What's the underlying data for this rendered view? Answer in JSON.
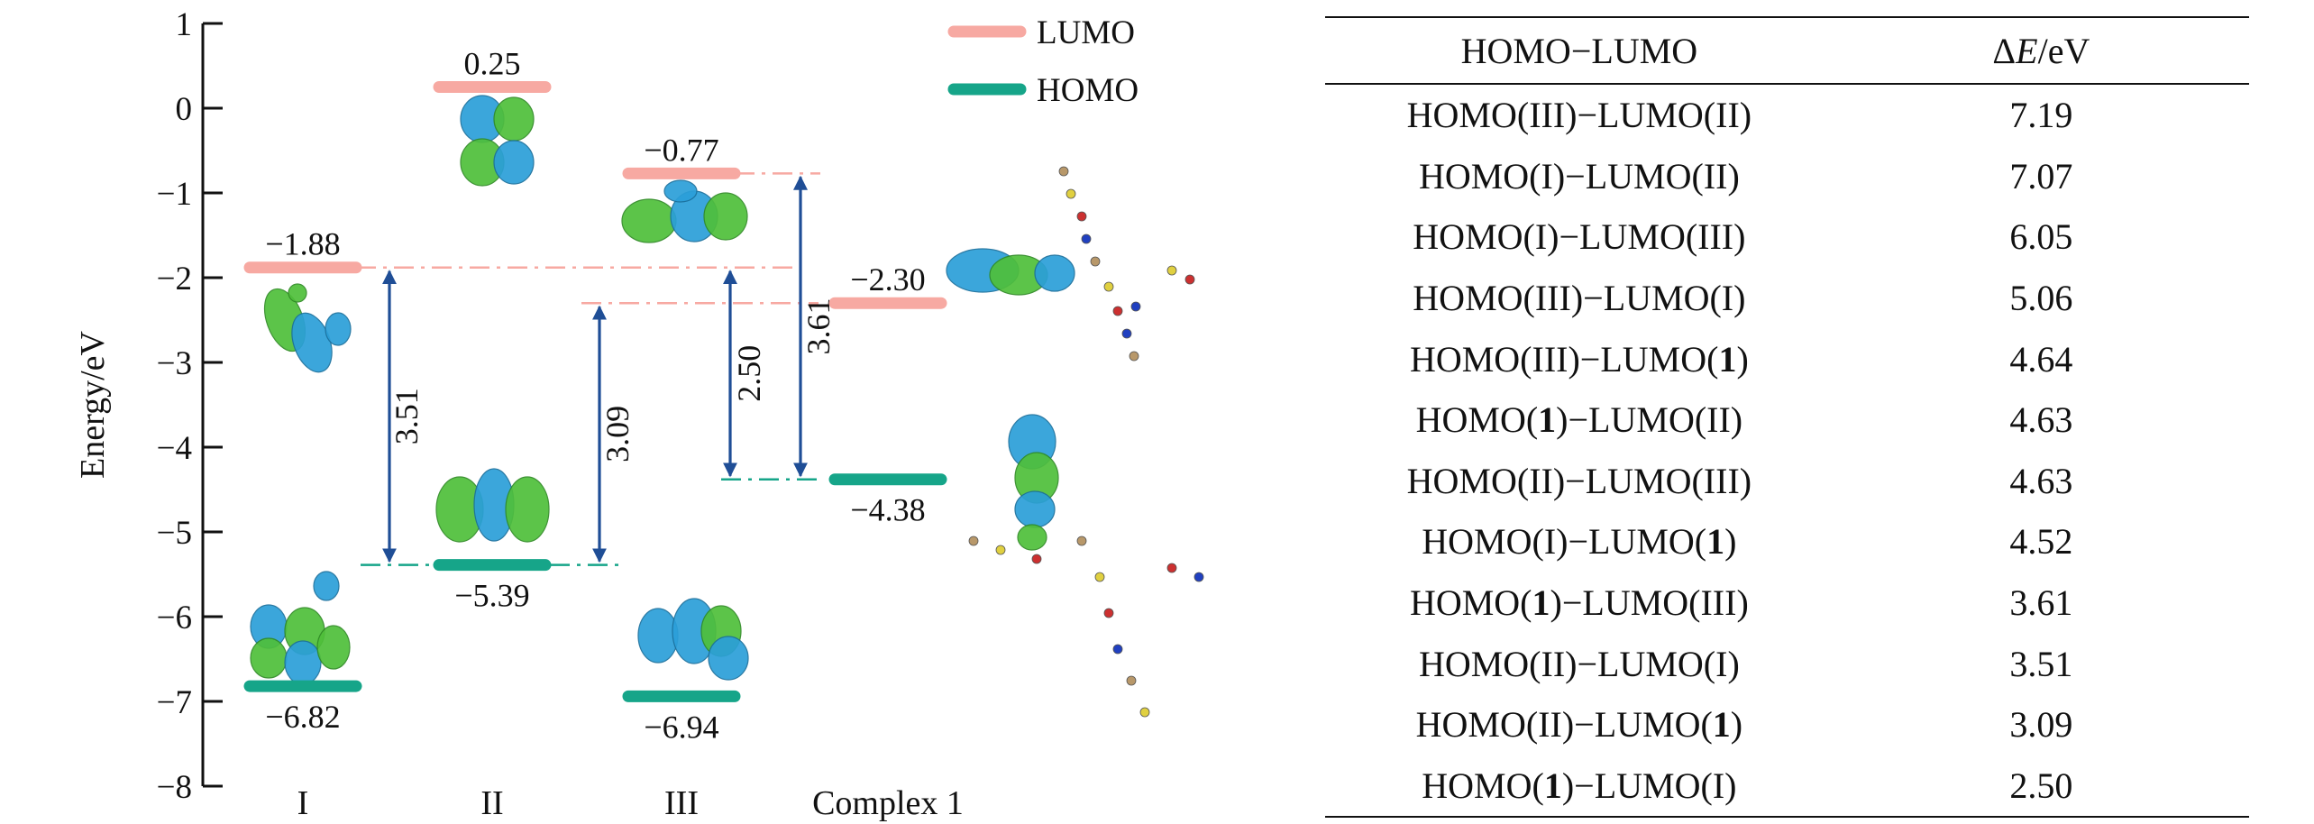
{
  "chart_data": {
    "type": "energy-level-diagram",
    "ylabel": "Energy/eV",
    "ylim": [
      -8,
      1
    ],
    "yticks": [
      1,
      0,
      -1,
      -2,
      -3,
      -4,
      -5,
      -6,
      -7,
      -8
    ],
    "categories": [
      "I",
      "II",
      "III",
      "Complex 1"
    ],
    "legend": {
      "placement": "top-right",
      "entries": [
        {
          "label": "LUMO",
          "color": "#f7a9a2"
        },
        {
          "label": "HOMO",
          "color": "#16a589"
        }
      ]
    },
    "levels": [
      {
        "category": "I",
        "lumo": -1.88,
        "homo": -6.82,
        "lumo_label": "−1.88",
        "homo_label": "−6.82"
      },
      {
        "category": "II",
        "lumo": 0.25,
        "homo": -5.39,
        "lumo_label": "0.25",
        "homo_label": "−5.39"
      },
      {
        "category": "III",
        "lumo": -0.77,
        "homo": -6.94,
        "lumo_label": "−0.77",
        "homo_label": "−6.94"
      },
      {
        "category": "Complex 1",
        "lumo": -2.3,
        "homo": -4.38,
        "lumo_label": "−2.30",
        "homo_label": "−4.38"
      }
    ],
    "transitions": [
      {
        "from": -5.39,
        "to": -1.88,
        "gap_label": "3.51"
      },
      {
        "from": -5.39,
        "to": -2.3,
        "gap_label": "3.09"
      },
      {
        "from": -4.38,
        "to": -1.88,
        "gap_label": "2.50"
      },
      {
        "from": -4.38,
        "to": -0.77,
        "gap_label": "3.61"
      }
    ],
    "colors": {
      "lumo": "#f7a9a2",
      "homo": "#16a589",
      "arrow": "#1f4e96",
      "lobe_green": "#4fbf3a",
      "lobe_blue": "#2b9fd9"
    }
  },
  "table": {
    "headers": {
      "pair": "HOMO−LUMO",
      "unit_delta": "Δ",
      "unit_e": "E",
      "unit_rest": "/eV"
    },
    "rows": [
      {
        "h": "III",
        "hb": false,
        "l": "II",
        "lb": false,
        "v": "7.19"
      },
      {
        "h": "I",
        "hb": false,
        "l": "II",
        "lb": false,
        "v": "7.07"
      },
      {
        "h": "I",
        "hb": false,
        "l": "III",
        "lb": false,
        "v": "6.05"
      },
      {
        "h": "III",
        "hb": false,
        "l": "I",
        "lb": false,
        "v": "5.06"
      },
      {
        "h": "III",
        "hb": false,
        "l": "1",
        "lb": true,
        "v": "4.64"
      },
      {
        "h": "1",
        "hb": true,
        "l": "II",
        "lb": false,
        "v": "4.63"
      },
      {
        "h": "II",
        "hb": false,
        "l": "III",
        "lb": false,
        "v": "4.63"
      },
      {
        "h": "I",
        "hb": false,
        "l": "1",
        "lb": true,
        "v": "4.52"
      },
      {
        "h": "1",
        "hb": true,
        "l": "III",
        "lb": false,
        "v": "3.61"
      },
      {
        "h": "II",
        "hb": false,
        "l": "I",
        "lb": false,
        "v": "3.51"
      },
      {
        "h": "II",
        "hb": false,
        "l": "1",
        "lb": true,
        "v": "3.09"
      },
      {
        "h": "1",
        "hb": true,
        "l": "I",
        "lb": false,
        "v": "2.50"
      }
    ]
  }
}
